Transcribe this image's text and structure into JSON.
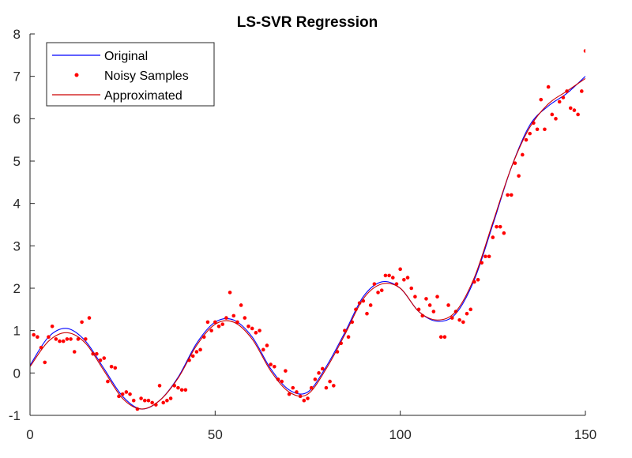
{
  "chart_data": {
    "type": "line",
    "title": "LS-SVR Regression",
    "xlabel": "",
    "ylabel": "",
    "xlim": [
      0,
      150
    ],
    "ylim": [
      -1,
      8
    ],
    "xticks": [
      0,
      50,
      100,
      150
    ],
    "yticks": [
      -1,
      0,
      1,
      2,
      3,
      4,
      5,
      6,
      7,
      8
    ],
    "grid": false,
    "legend_placement": "top-left",
    "legend": [
      "Original",
      "Noisy Samples",
      "Approximated"
    ],
    "colors": {
      "original": "#0000ff",
      "samples": "#ff0000",
      "approximated": "#cc0000"
    },
    "series": [
      {
        "name": "Original",
        "style": "line",
        "x": [
          0,
          5,
          10,
          15,
          20,
          25,
          30,
          35,
          40,
          45,
          50,
          55,
          60,
          65,
          70,
          75,
          80,
          85,
          90,
          95,
          100,
          105,
          110,
          115,
          120,
          125,
          130,
          135,
          140,
          145,
          150
        ],
        "y": [
          0.18,
          0.85,
          1.05,
          0.75,
          0.1,
          -0.55,
          -0.85,
          -0.65,
          -0.1,
          0.7,
          1.2,
          1.25,
          0.85,
          0.1,
          -0.4,
          -0.45,
          0.15,
          0.95,
          1.8,
          2.15,
          2.0,
          1.45,
          1.22,
          1.4,
          2.2,
          3.5,
          4.85,
          5.85,
          6.3,
          6.6,
          7.0
        ]
      },
      {
        "name": "Noisy Samples",
        "style": "scatter",
        "x": [
          1,
          2,
          3,
          4,
          5,
          6,
          7,
          8,
          9,
          10,
          11,
          12,
          13,
          14,
          15,
          16,
          17,
          18,
          19,
          20,
          21,
          22,
          23,
          24,
          25,
          26,
          27,
          28,
          29,
          30,
          31,
          32,
          33,
          34,
          35,
          36,
          37,
          38,
          39,
          40,
          41,
          42,
          43,
          44,
          45,
          46,
          47,
          48,
          49,
          50,
          51,
          52,
          53,
          54,
          55,
          56,
          57,
          58,
          59,
          60,
          61,
          62,
          63,
          64,
          65,
          66,
          67,
          68,
          69,
          70,
          71,
          72,
          73,
          74,
          75,
          76,
          77,
          78,
          79,
          80,
          81,
          82,
          83,
          84,
          85,
          86,
          87,
          88,
          89,
          90,
          91,
          92,
          93,
          94,
          95,
          96,
          97,
          98,
          99,
          100,
          101,
          102,
          103,
          104,
          105,
          106,
          107,
          108,
          109,
          110,
          111,
          112,
          113,
          114,
          115,
          116,
          117,
          118,
          119,
          120,
          121,
          122,
          123,
          124,
          125,
          126,
          127,
          128,
          129,
          130,
          131,
          132,
          133,
          134,
          135,
          136,
          137,
          138,
          139,
          140,
          141,
          142,
          143,
          144,
          145,
          146,
          147,
          148,
          149,
          150
        ],
        "y": [
          0.9,
          0.85,
          0.6,
          0.25,
          0.85,
          1.1,
          0.8,
          0.75,
          0.75,
          0.8,
          0.8,
          0.5,
          0.8,
          1.2,
          0.8,
          1.3,
          0.45,
          0.45,
          0.3,
          0.35,
          -0.2,
          0.15,
          0.12,
          -0.55,
          -0.5,
          -0.45,
          -0.5,
          -0.65,
          -0.85,
          -0.6,
          -0.65,
          -0.65,
          -0.7,
          -0.75,
          -0.3,
          -0.7,
          -0.65,
          -0.6,
          -0.3,
          -0.35,
          -0.4,
          -0.4,
          0.3,
          0.4,
          0.5,
          0.55,
          0.85,
          1.2,
          1.0,
          1.2,
          1.1,
          1.15,
          1.3,
          1.9,
          1.35,
          1.2,
          1.6,
          1.3,
          1.1,
          1.05,
          0.95,
          1.0,
          0.55,
          0.65,
          0.2,
          0.15,
          -0.15,
          -0.2,
          0.05,
          -0.5,
          -0.35,
          -0.45,
          -0.55,
          -0.65,
          -0.6,
          -0.35,
          -0.15,
          0.0,
          0.1,
          -0.35,
          -0.2,
          -0.3,
          0.5,
          0.7,
          1.0,
          0.85,
          1.2,
          1.5,
          1.65,
          1.7,
          1.4,
          1.6,
          2.1,
          1.9,
          1.95,
          2.3,
          2.3,
          2.25,
          2.1,
          2.45,
          2.2,
          2.25,
          2.0,
          1.8,
          1.5,
          1.35,
          1.75,
          1.6,
          1.45,
          1.8,
          0.85,
          0.85,
          1.6,
          1.3,
          1.45,
          1.25,
          1.2,
          1.4,
          1.5,
          2.15,
          2.2,
          2.6,
          2.75,
          2.75,
          3.2,
          3.45,
          3.45,
          3.3,
          4.2,
          4.2,
          4.95,
          4.65,
          5.15,
          5.5,
          5.65,
          5.9,
          5.75,
          6.45,
          5.75,
          6.75,
          6.1,
          6.0,
          6.4,
          6.5,
          6.65,
          6.25,
          6.2,
          6.1,
          6.65,
          7.6
        ]
      },
      {
        "name": "Approximated",
        "style": "line",
        "x": [
          0,
          5,
          10,
          15,
          20,
          25,
          30,
          35,
          40,
          45,
          50,
          55,
          60,
          65,
          70,
          75,
          80,
          85,
          90,
          95,
          100,
          105,
          110,
          115,
          120,
          125,
          130,
          135,
          140,
          145,
          150
        ],
        "y": [
          0.15,
          0.75,
          0.95,
          0.7,
          0.05,
          -0.6,
          -0.85,
          -0.65,
          -0.12,
          0.65,
          1.15,
          1.2,
          0.8,
          0.05,
          -0.45,
          -0.5,
          0.1,
          0.9,
          1.75,
          2.1,
          2.0,
          1.45,
          1.25,
          1.45,
          2.25,
          3.55,
          4.85,
          5.8,
          6.35,
          6.65,
          6.95
        ]
      }
    ]
  }
}
